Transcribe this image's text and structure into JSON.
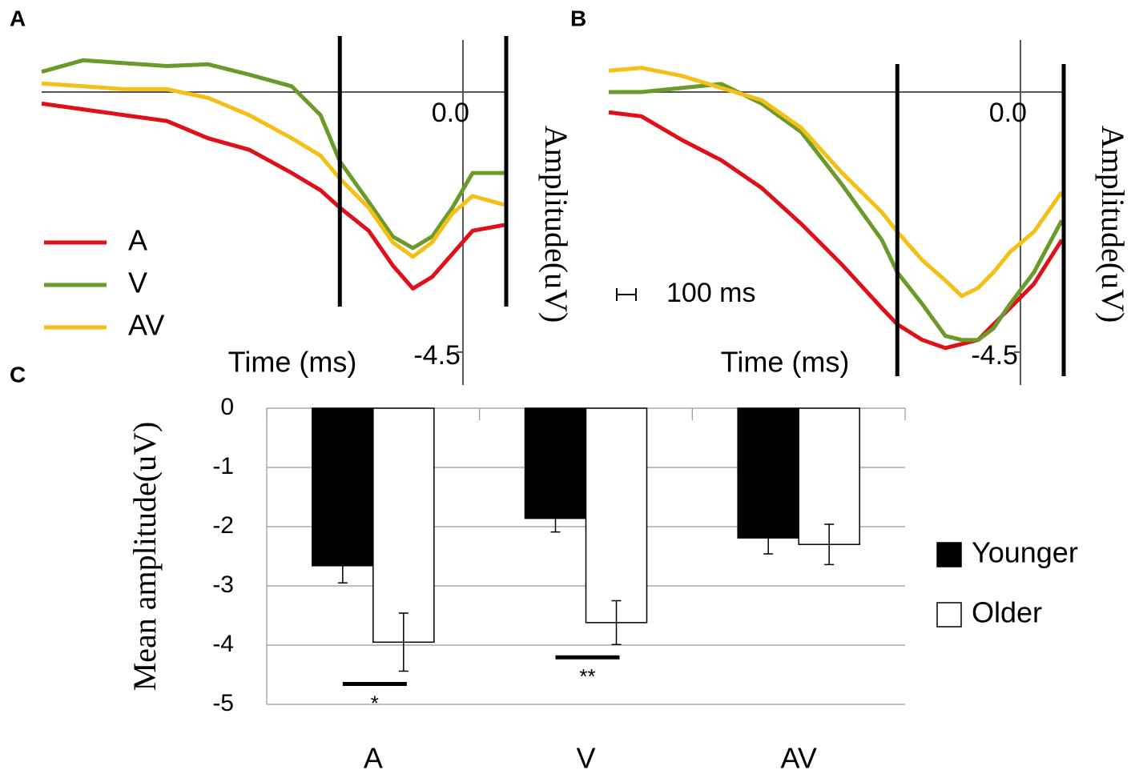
{
  "chart_data": [
    {
      "type": "line",
      "label": "A",
      "xlabel": "Time (ms)",
      "ylabel": "Amplitude(uV)",
      "x": [
        -2190,
        -1975,
        -1760,
        -1540,
        -1325,
        -1110,
        -890,
        -740,
        -640,
        -490,
        -365,
        -260,
        -160,
        -55,
        50,
        215
      ],
      "series": [
        {
          "name": "A",
          "color": "#e0101a",
          "values": [
            -0.2,
            -0.3,
            -0.4,
            -0.5,
            -0.8,
            -1.0,
            -1.4,
            -1.7,
            -2.0,
            -2.4,
            -3.0,
            -3.4,
            -3.2,
            -2.8,
            -2.4,
            -2.3
          ]
        },
        {
          "name": "V",
          "color": "#6a9a2a",
          "values": [
            0.35,
            0.55,
            0.5,
            0.45,
            0.48,
            0.3,
            0.1,
            -0.4,
            -1.2,
            -1.9,
            -2.5,
            -2.7,
            -2.5,
            -2.0,
            -1.4,
            -1.4
          ]
        },
        {
          "name": "AV",
          "color": "#f4c018",
          "values": [
            0.15,
            0.1,
            0.05,
            0.05,
            -0.1,
            -0.4,
            -0.8,
            -1.1,
            -1.5,
            -2.0,
            -2.6,
            -2.85,
            -2.6,
            -2.1,
            -1.8,
            -1.95
          ]
        }
      ],
      "windows": [
        -640,
        225
      ],
      "xlim": [
        -2190,
        225
      ],
      "ylim": [
        -5,
        0.9
      ],
      "yticks": [
        {
          "value": 0,
          "label": "0.0"
        },
        -4.5
      ]
    },
    {
      "type": "line",
      "label": "B",
      "xlabel": "Time (ms)",
      "ylabel": "Amplitude(uV)",
      "x": [
        -2140,
        -1970,
        -1760,
        -1555,
        -1345,
        -1140,
        -930,
        -720,
        -640,
        -510,
        -390,
        -305,
        -220,
        -140,
        -55,
        70,
        215
      ],
      "series": [
        {
          "color": "#e0101a",
          "values": [
            -0.35,
            -0.42,
            -0.83,
            -1.18,
            -1.66,
            -2.28,
            -2.98,
            -3.74,
            -4.02,
            -4.29,
            -4.43,
            -4.36,
            -4.29,
            -4.02,
            -3.74,
            -3.32,
            -2.56
          ]
        },
        {
          "color": "#6a9a2a",
          "values": [
            0,
            0,
            0.07,
            0.14,
            -0.2,
            -0.69,
            -1.59,
            -2.56,
            -3.12,
            -3.67,
            -4.22,
            -4.29,
            -4.29,
            -4.09,
            -3.67,
            -3.12,
            -2.22
          ]
        },
        {
          "color": "#f4c018",
          "values": [
            0.37,
            0.42,
            0.28,
            0.07,
            -0.14,
            -0.62,
            -1.39,
            -2.08,
            -2.42,
            -2.91,
            -3.26,
            -3.53,
            -3.39,
            -3.12,
            -2.77,
            -2.42,
            -1.73
          ]
        }
      ],
      "windows": [
        -640,
        225
      ],
      "scale_bar": {
        "value": 100,
        "label": "100 ms"
      },
      "xlim": [
        -2140,
        225
      ],
      "ylim": [
        -5,
        0.9
      ],
      "yticks": [
        {
          "value": 0,
          "label": "0.0"
        },
        -4.5
      ]
    },
    {
      "type": "bar",
      "label": "C",
      "ylabel": "Mean amplitude(uV)",
      "categories": [
        "A",
        "V",
        "AV"
      ],
      "series": [
        {
          "name": "Younger",
          "color": "#000000",
          "values": [
            -2.66,
            -1.86,
            -2.19
          ],
          "errors": [
            0.29,
            0.23,
            0.27
          ]
        },
        {
          "name": "Older",
          "color": "#ffffff",
          "values": [
            -3.95,
            -3.62,
            -2.3
          ],
          "errors": [
            0.49,
            0.37,
            0.34
          ]
        }
      ],
      "annotations": [
        {
          "text": "*",
          "category": "A"
        },
        {
          "text": "**",
          "category": "V"
        }
      ],
      "ylim": [
        -5,
        0
      ],
      "yticks": [
        0,
        -1,
        -2,
        -3,
        -4,
        -5
      ],
      "grid": true
    }
  ]
}
